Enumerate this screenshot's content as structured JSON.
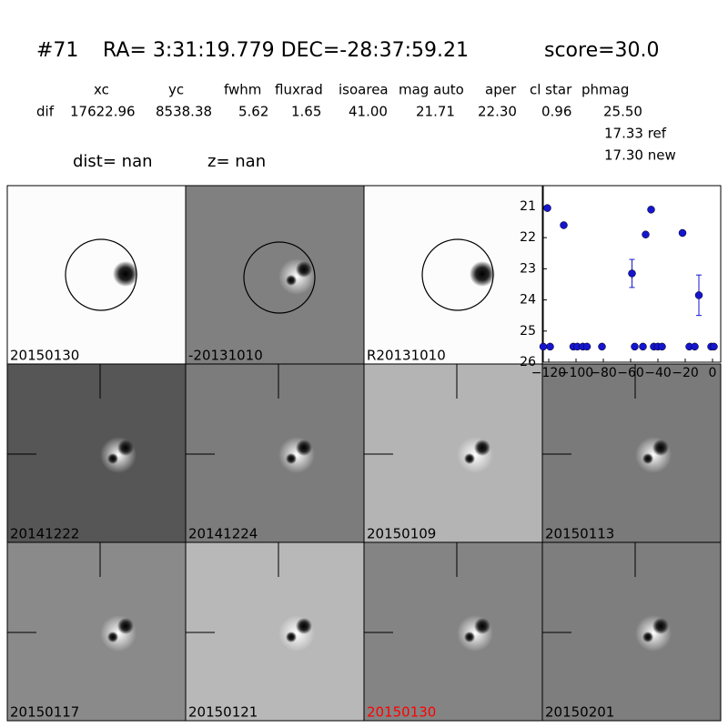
{
  "header": {
    "id": "#71",
    "coords": "RA= 3:31:19.779 DEC=-28:37:59.21",
    "score": "score=30.0"
  },
  "table": {
    "columns": [
      "xc",
      "yc",
      "fwhm",
      "fluxrad",
      "isoarea",
      "mag auto",
      "aper",
      "cl star",
      "phmag"
    ],
    "row_label": "dif",
    "row": [
      "17622.96",
      "8538.38",
      "5.62",
      "1.65",
      "41.00",
      "21.71",
      "22.30",
      "0.96",
      "25.50"
    ],
    "extra": [
      "17.33 ref",
      "17.30 new"
    ]
  },
  "dist": "dist=   nan",
  "z": "z=   nan",
  "panels": [
    {
      "label": "20150130"
    },
    {
      "label": "-20131010"
    },
    {
      "label": "R20131010"
    },
    {
      "label": "20141222"
    },
    {
      "label": "20141224"
    },
    {
      "label": "20150109"
    },
    {
      "label": "20150113"
    },
    {
      "label": "20150117"
    },
    {
      "label": "20150121"
    },
    {
      "label": "20150130",
      "label_color": "#ff0000"
    },
    {
      "label": "20150201"
    }
  ],
  "chart_data": {
    "type": "scatter",
    "color": "#1515d0",
    "x": [
      -124,
      -121,
      -119,
      -109,
      -102,
      -99,
      -95,
      -92,
      -81,
      -59,
      -57,
      -51,
      -49,
      -45,
      -43,
      -40,
      -37,
      -22,
      -17,
      -13,
      -10,
      -1,
      1
    ],
    "values": [
      25.5,
      21.05,
      25.5,
      21.6,
      25.5,
      25.5,
      25.5,
      25.5,
      25.5,
      23.15,
      25.5,
      25.5,
      21.9,
      21.1,
      25.5,
      25.5,
      25.5,
      21.85,
      25.5,
      25.5,
      23.85,
      25.5,
      25.5
    ],
    "errors": [
      null,
      null,
      null,
      null,
      null,
      null,
      null,
      null,
      null,
      0.45,
      null,
      null,
      null,
      null,
      null,
      null,
      null,
      null,
      null,
      null,
      0.65,
      null,
      null
    ],
    "xlim": [
      -124,
      6
    ],
    "ylim": [
      26,
      20.33
    ],
    "xticks": [
      {
        "value": -120,
        "label": "−120"
      },
      {
        "value": -100,
        "label": "−100"
      },
      {
        "value": -80,
        "label": "−80"
      },
      {
        "value": -60,
        "label": "−60"
      },
      {
        "value": -40,
        "label": "−40"
      },
      {
        "value": -20,
        "label": "−20"
      },
      0
    ],
    "yticks": [
      21,
      22,
      23,
      24,
      25,
      26
    ]
  }
}
